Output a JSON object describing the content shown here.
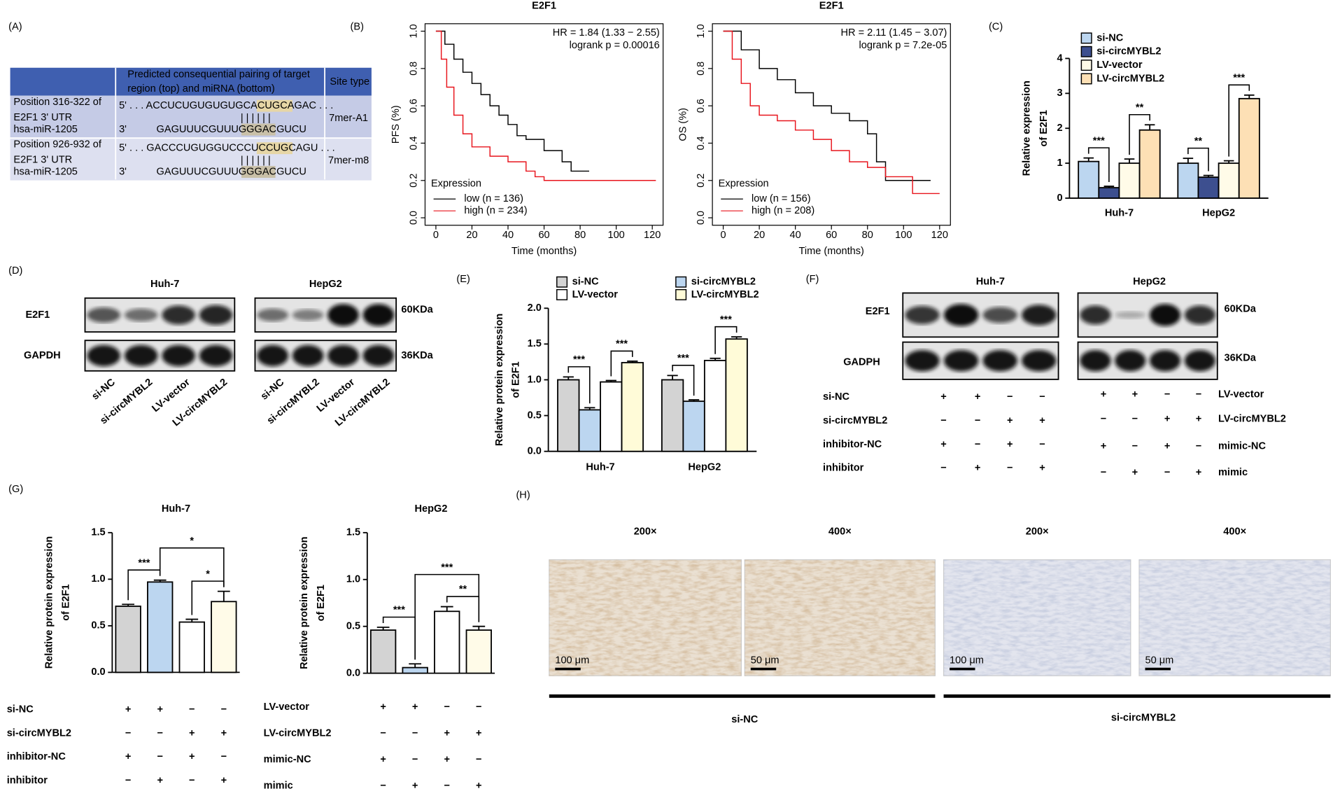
{
  "panel_labels": [
    "(A)",
    "(B)",
    "(C)",
    "(D)",
    "(E)",
    "(F)",
    "(G)",
    "(H)"
  ],
  "table_a": {
    "header": [
      "Predicted consequential pairing of target",
      "region (top) and miRNA (bottom)",
      "Site type"
    ],
    "rows": [
      {
        "position": [
          "Position 316-322 of",
          "E2F1 3' UTR",
          "hsa-miR-1205"
        ],
        "target": "5' . . . ACCUCUGUGUGUGCACUGCAGAC . . .",
        "pairing": "| | | | | |",
        "mirna_end": "3'",
        "mirna": "GAGUUUCGUUUGGGACGUCU",
        "site": "7mer-A1"
      },
      {
        "position": [
          "Position 926-932 of",
          "E2F1 3' UTR",
          "hsa-miR-1205"
        ],
        "target": "5' . . . GACCCUGUGGUCCCUCCUGCAGU . . .",
        "pairing": "| | | | | |",
        "mirna_end": "3'",
        "mirna": "GAGUUUCGUUUGGGACGUCU",
        "site": "7mer-m8"
      }
    ]
  },
  "chart_data": [
    {
      "type": "line",
      "step": true,
      "title": "E2F1",
      "xlabel": "Time (months)",
      "ylabel": "PFS (%)",
      "xlim": [
        -6,
        126
      ],
      "xticks": [
        0,
        20,
        40,
        60,
        80,
        100,
        120
      ],
      "ylim": [
        -0.04,
        1.04
      ],
      "yticks": [
        {
          "value": 0,
          "label": "0.0"
        },
        0.2,
        0.4,
        0.6,
        0.8,
        {
          "value": 1,
          "label": "1.0"
        }
      ],
      "annotations": [
        "HR = 1.84 (1.33 − 2.55)",
        "logrank p = 0.00016"
      ],
      "legend_title": "Expression",
      "series": [
        {
          "name": "low (n = 136)",
          "color": "#000000",
          "x": [
            0,
            5,
            10,
            15,
            20,
            25,
            30,
            35,
            40,
            45,
            50,
            60,
            70,
            75,
            85
          ],
          "values": [
            1,
            0.93,
            0.85,
            0.78,
            0.72,
            0.66,
            0.6,
            0.55,
            0.5,
            0.44,
            0.42,
            0.36,
            0.3,
            0.25,
            0.25
          ]
        },
        {
          "name": "high (n = 234)",
          "color": "#e8141c",
          "x": [
            0,
            3,
            6,
            10,
            15,
            20,
            30,
            40,
            50,
            55,
            60,
            122
          ],
          "values": [
            1,
            0.85,
            0.7,
            0.55,
            0.45,
            0.38,
            0.33,
            0.3,
            0.25,
            0.22,
            0.2,
            0.2
          ]
        }
      ]
    },
    {
      "type": "line",
      "step": true,
      "title": "E2F1",
      "xlabel": "Time (months)",
      "ylabel": "OS (%)",
      "xlim": [
        -6,
        126
      ],
      "xticks": [
        0,
        20,
        40,
        60,
        80,
        100,
        120
      ],
      "ylim": [
        -0.04,
        1.04
      ],
      "yticks": [
        {
          "value": 0,
          "label": "0.0"
        },
        0.2,
        0.4,
        0.6,
        0.8,
        {
          "value": 1,
          "label": "1.0"
        }
      ],
      "annotations": [
        "HR = 2.11 (1.45 − 3.07)",
        "logrank p = 7.2e-05"
      ],
      "legend_title": "Expression",
      "series": [
        {
          "name": "low (n = 156)",
          "color": "#000000",
          "x": [
            0,
            10,
            20,
            30,
            40,
            50,
            60,
            70,
            80,
            85,
            90,
            115
          ],
          "values": [
            1,
            0.9,
            0.8,
            0.74,
            0.67,
            0.6,
            0.56,
            0.52,
            0.45,
            0.3,
            0.2,
            0.2
          ]
        },
        {
          "name": "high (n = 208)",
          "color": "#e8141c",
          "x": [
            0,
            5,
            10,
            15,
            20,
            30,
            40,
            50,
            60,
            70,
            80,
            90,
            100,
            105,
            120
          ],
          "values": [
            1,
            0.85,
            0.72,
            0.6,
            0.55,
            0.52,
            0.47,
            0.42,
            0.36,
            0.3,
            0.27,
            0.22,
            0.22,
            0.13,
            0.13
          ]
        }
      ]
    },
    {
      "type": "bar",
      "ylabel": [
        "Relative expression",
        "of E2F1"
      ],
      "categories": [
        "Huh-7",
        "HepG2"
      ],
      "ylim": [
        0,
        4
      ],
      "yticks": [
        0,
        1,
        2,
        3,
        4
      ],
      "series": [
        {
          "name": "si-NC",
          "color": "#bcd6f0",
          "values": [
            1.05,
            1.0
          ],
          "errors": [
            0.1,
            0.14
          ]
        },
        {
          "name": "si-circMYBL2",
          "color": "#3d4f8f",
          "values": [
            0.3,
            0.6
          ],
          "errors": [
            0.04,
            0.05
          ]
        },
        {
          "name": "LV-vector",
          "color": "#fffbe8",
          "values": [
            1.0,
            1.0
          ],
          "errors": [
            0.12,
            0.07
          ]
        },
        {
          "name": "LV-circMYBL2",
          "color": "#fde0b5",
          "values": [
            1.95,
            2.85
          ],
          "errors": [
            0.15,
            0.1
          ]
        }
      ],
      "significance": [
        {
          "category": 0,
          "bars": [
            0,
            1
          ],
          "label": "***"
        },
        {
          "category": 0,
          "bars": [
            2,
            3
          ],
          "label": "**"
        },
        {
          "category": 1,
          "bars": [
            0,
            1
          ],
          "label": "**"
        },
        {
          "category": 1,
          "bars": [
            2,
            3
          ],
          "label": "***"
        }
      ]
    },
    {
      "type": "bar",
      "ylabel": [
        "Relative protein expression",
        "of E2F1"
      ],
      "categories": [
        "Huh-7",
        "HepG2"
      ],
      "ylim": [
        0,
        2
      ],
      "yticks": [
        {
          "value": 0,
          "label": "0.0"
        },
        0.5,
        {
          "value": 1,
          "label": "1.0"
        },
        1.5,
        {
          "value": 2,
          "label": "2.0"
        }
      ],
      "series": [
        {
          "name": "si-NC",
          "color": "#d3d3d3",
          "values": [
            1.0,
            1.0
          ],
          "errors": [
            0.04,
            0.06
          ]
        },
        {
          "name": "si-circMYBL2",
          "color": "#bcd6f0",
          "values": [
            0.58,
            0.7
          ],
          "errors": [
            0.03,
            0.02
          ]
        },
        {
          "name": "LV-vector",
          "color": "#ffffff",
          "values": [
            0.97,
            1.27
          ],
          "errors": [
            0.02,
            0.03
          ]
        },
        {
          "name": "LV-circMYBL2",
          "color": "#fffbd8",
          "values": [
            1.24,
            1.57
          ],
          "errors": [
            0.02,
            0.03
          ]
        }
      ],
      "significance": [
        {
          "category": 0,
          "bars": [
            0,
            1
          ],
          "label": "***"
        },
        {
          "category": 0,
          "bars": [
            2,
            3
          ],
          "label": "***"
        },
        {
          "category": 1,
          "bars": [
            0,
            1
          ],
          "label": "***"
        },
        {
          "category": 1,
          "bars": [
            2,
            3
          ],
          "label": "***"
        }
      ]
    },
    {
      "type": "bar",
      "title": "Huh-7",
      "ylabel": [
        "Relative protein expression",
        "of E2F1"
      ],
      "ylim": [
        0,
        1.5
      ],
      "yticks": [
        {
          "value": 0,
          "label": "0.0"
        },
        0.5,
        {
          "value": 1,
          "label": "1.0"
        },
        1.5
      ],
      "values": [
        0.71,
        0.97,
        0.54,
        0.76
      ],
      "errors": [
        0.02,
        0.02,
        0.03,
        0.11
      ],
      "colors": [
        "#d3d3d3",
        "#bcd6f0",
        "#ffffff",
        "#fffbe8"
      ],
      "significance": [
        {
          "bars": [
            0,
            1
          ],
          "label": "***"
        },
        {
          "bars": [
            2,
            3
          ],
          "label": "*"
        },
        {
          "bars": [
            1,
            3
          ],
          "label": "*"
        }
      ],
      "conditions": [
        {
          "label": "si-NC",
          "signs": [
            "+",
            "+",
            "−",
            "−"
          ]
        },
        {
          "label": "si-circMYBL2",
          "signs": [
            "−",
            "−",
            "+",
            "+"
          ]
        },
        {
          "label": "inhibitor-NC",
          "signs": [
            "+",
            "−",
            "+",
            "−"
          ]
        },
        {
          "label": "inhibitor",
          "signs": [
            "−",
            "+",
            "−",
            "+"
          ]
        }
      ]
    },
    {
      "type": "bar",
      "title": "HepG2",
      "ylabel": [
        "Relative protein expression",
        "of E2F1"
      ],
      "ylim": [
        0,
        1.5
      ],
      "yticks": [
        {
          "value": 0,
          "label": "0.0"
        },
        0.5,
        {
          "value": 1,
          "label": "1.0"
        },
        1.5
      ],
      "values": [
        0.46,
        0.06,
        0.66,
        0.46
      ],
      "errors": [
        0.03,
        0.04,
        0.05,
        0.04
      ],
      "colors": [
        "#d3d3d3",
        "#bcd6f0",
        "#ffffff",
        "#fffbe8"
      ],
      "significance": [
        {
          "bars": [
            0,
            1
          ],
          "label": "***"
        },
        {
          "bars": [
            2,
            3
          ],
          "label": "**"
        },
        {
          "bars": [
            1,
            3
          ],
          "label": "***"
        }
      ],
      "conditions": [
        {
          "label": "LV-vector",
          "signs": [
            "+",
            "+",
            "−",
            "−"
          ]
        },
        {
          "label": "LV-circMYBL2",
          "signs": [
            "−",
            "−",
            "+",
            "+"
          ]
        },
        {
          "label": "mimic-NC",
          "signs": [
            "+",
            "−",
            "+",
            "−"
          ]
        },
        {
          "label": "mimic",
          "signs": [
            "−",
            "+",
            "−",
            "+"
          ]
        }
      ]
    }
  ],
  "blot_d": {
    "cells": [
      "Huh-7",
      "HepG2"
    ],
    "proteins": [
      "E2F1",
      "GAPDH"
    ],
    "sizes": [
      "60KDa",
      "36KDa"
    ],
    "lanes": [
      "si-NC",
      "si-circMYBL2",
      "LV-vector",
      "LV-circMYBL2"
    ]
  },
  "blot_f": {
    "cells": [
      "Huh-7",
      "HepG2"
    ],
    "proteins": [
      "E2F1",
      "GADPH"
    ],
    "sizes": [
      "60KDa",
      "36KDa"
    ],
    "conditions_left": [
      {
        "label": "si-NC",
        "signs": [
          "+",
          "+",
          "−",
          "−"
        ]
      },
      {
        "label": "si-circMYBL2",
        "signs": [
          "−",
          "−",
          "+",
          "+"
        ]
      },
      {
        "label": "inhibitor-NC",
        "signs": [
          "+",
          "−",
          "+",
          "−"
        ]
      },
      {
        "label": "inhibitor",
        "signs": [
          "−",
          "+",
          "−",
          "+"
        ]
      }
    ],
    "conditions_right": [
      {
        "label": "LV-vector",
        "signs": [
          "+",
          "+",
          "−",
          "−"
        ]
      },
      {
        "label": "LV-circMYBL2",
        "signs": [
          "−",
          "−",
          "+",
          "+"
        ]
      },
      {
        "label": "mimic-NC",
        "signs": [
          "+",
          "−",
          "+",
          "−"
        ]
      },
      {
        "label": "mimic",
        "signs": [
          "−",
          "+",
          "−",
          "+"
        ]
      }
    ]
  },
  "ihc_h": {
    "magnifications": [
      "200×",
      "400×",
      "200×",
      "400×"
    ],
    "scale_bars": [
      "100 μm",
      "50 μm",
      "100 μm",
      "50 μm"
    ],
    "groups": [
      "si-NC",
      "si-circMYBL2"
    ]
  }
}
